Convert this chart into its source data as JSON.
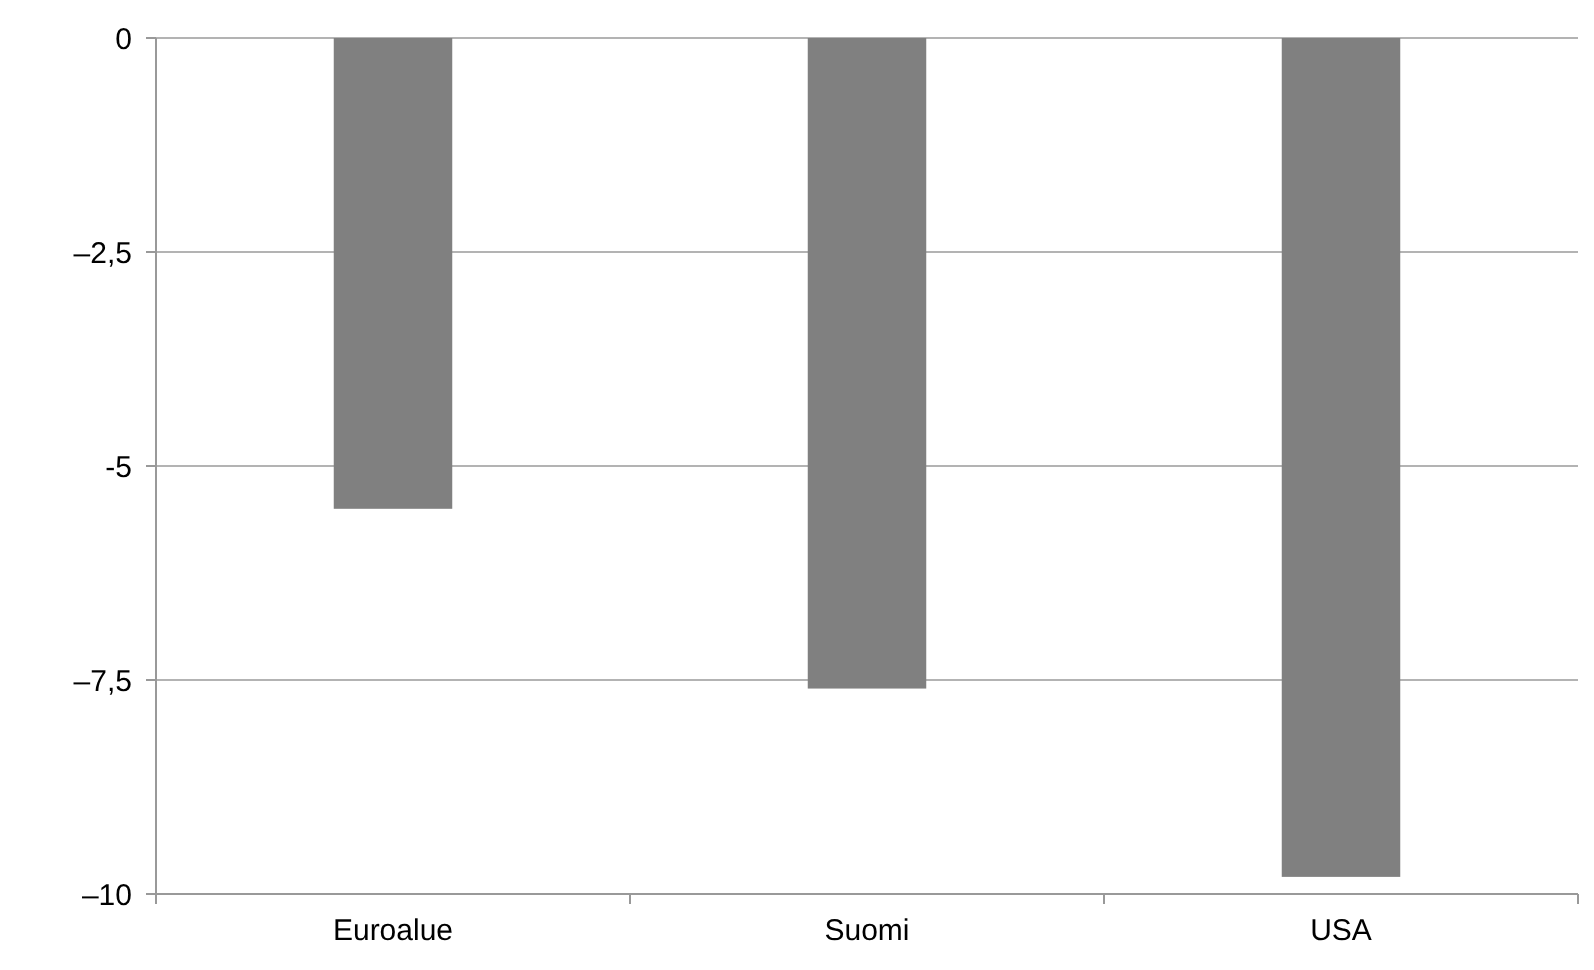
{
  "chart_data": {
    "type": "bar",
    "categories": [
      "Euroalue",
      "Suomi",
      "USA"
    ],
    "values": [
      -5.5,
      -7.6,
      -9.8
    ],
    "color": "#808080",
    "ylim": [
      -10,
      0
    ],
    "yticks": [
      {
        "value": 0,
        "label": "0"
      },
      {
        "value": -2.5,
        "label": "–2,5"
      },
      {
        "value": -5,
        "label": "-5"
      },
      {
        "value": -7.5,
        "label": "–7,5"
      },
      {
        "value": -10,
        "label": "–10"
      }
    ],
    "grid": "y"
  }
}
